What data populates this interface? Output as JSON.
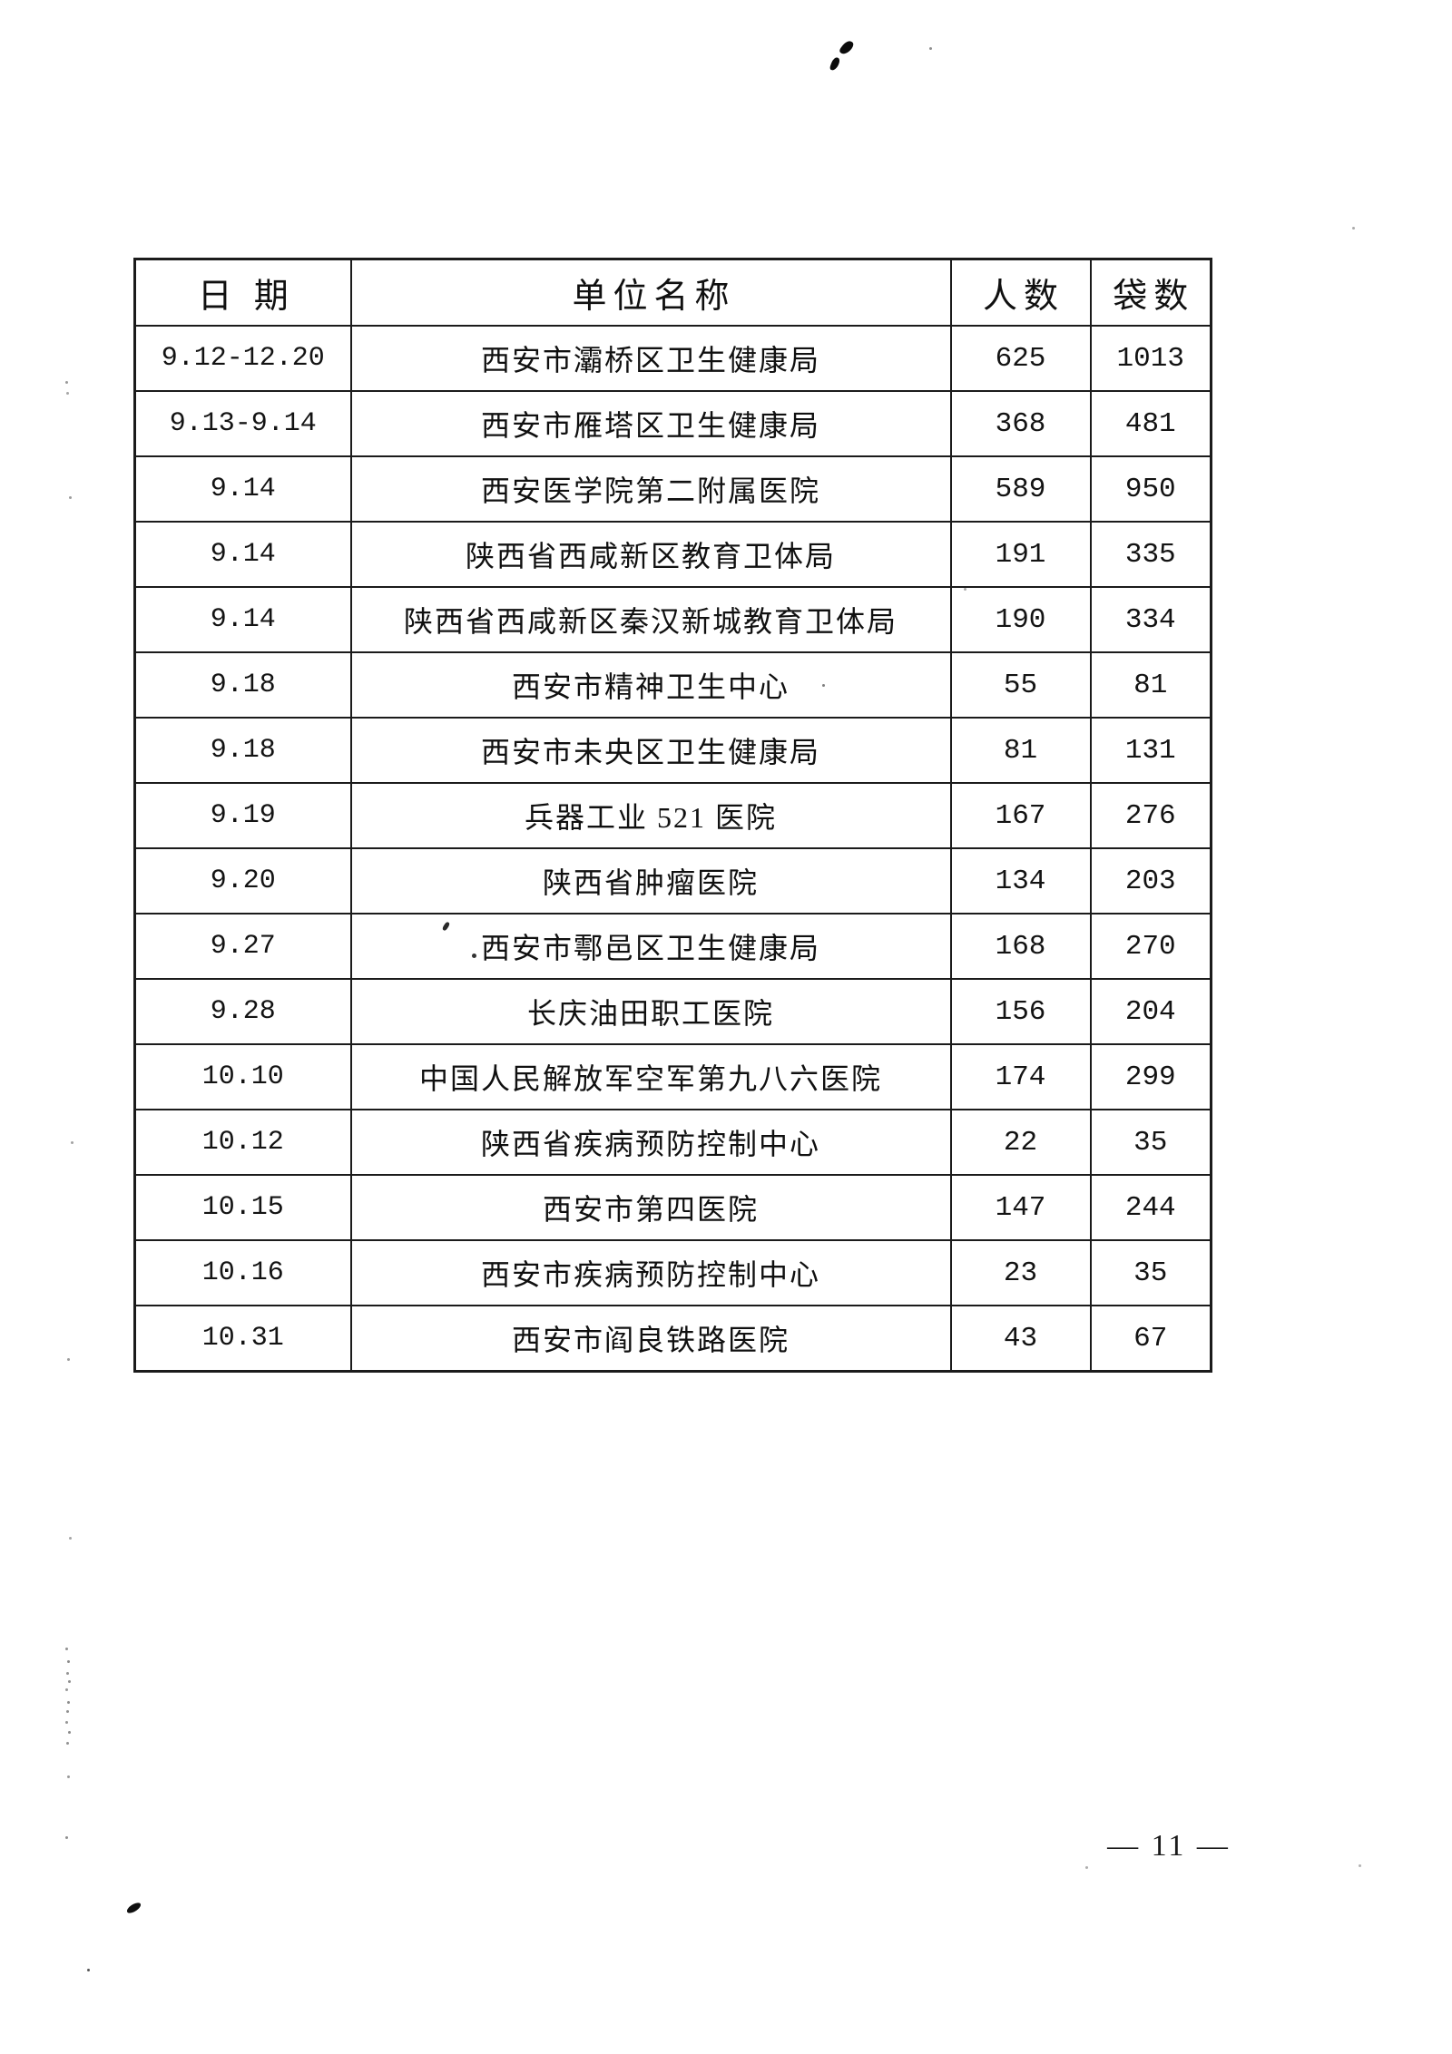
{
  "page": {
    "number_label": "— 11 —"
  },
  "table": {
    "headers": [
      "日期",
      "单位名称",
      "人数",
      "袋数"
    ],
    "rows": [
      {
        "date": "9.12-12.20",
        "unit": "西安市灞桥区卫生健康局",
        "people": "625",
        "bags": "1013"
      },
      {
        "date": "9.13-9.14",
        "unit": "西安市雁塔区卫生健康局",
        "people": "368",
        "bags": "481"
      },
      {
        "date": "9.14",
        "unit": "西安医学院第二附属医院",
        "people": "589",
        "bags": "950"
      },
      {
        "date": "9.14",
        "unit": "陕西省西咸新区教育卫体局",
        "people": "191",
        "bags": "335"
      },
      {
        "date": "9.14",
        "unit": "陕西省西咸新区秦汉新城教育卫体局",
        "people": "190",
        "bags": "334"
      },
      {
        "date": "9.18",
        "unit": "西安市精神卫生中心",
        "people": "55",
        "bags": "81"
      },
      {
        "date": "9.18",
        "unit": "西安市未央区卫生健康局",
        "people": "81",
        "bags": "131"
      },
      {
        "date": "9.19",
        "unit": "兵器工业 521 医院",
        "people": "167",
        "bags": "276"
      },
      {
        "date": "9.20",
        "unit": "陕西省肿瘤医院",
        "people": "134",
        "bags": "203"
      },
      {
        "date": "9.27",
        "unit": "西安市鄠邑区卫生健康局",
        "people": "168",
        "bags": "270"
      },
      {
        "date": "9.28",
        "unit": "长庆油田职工医院",
        "people": "156",
        "bags": "204"
      },
      {
        "date": "10.10",
        "unit": "中国人民解放军空军第九八六医院",
        "people": "174",
        "bags": "299"
      },
      {
        "date": "10.12",
        "unit": "陕西省疾病预防控制中心",
        "people": "22",
        "bags": "35"
      },
      {
        "date": "10.15",
        "unit": "西安市第四医院",
        "people": "147",
        "bags": "244"
      },
      {
        "date": "10.16",
        "unit": "西安市疾病预防控制中心",
        "people": "23",
        "bags": "35"
      },
      {
        "date": "10.31",
        "unit": "西安市阎良铁路医院",
        "people": "43",
        "bags": "67"
      }
    ]
  }
}
